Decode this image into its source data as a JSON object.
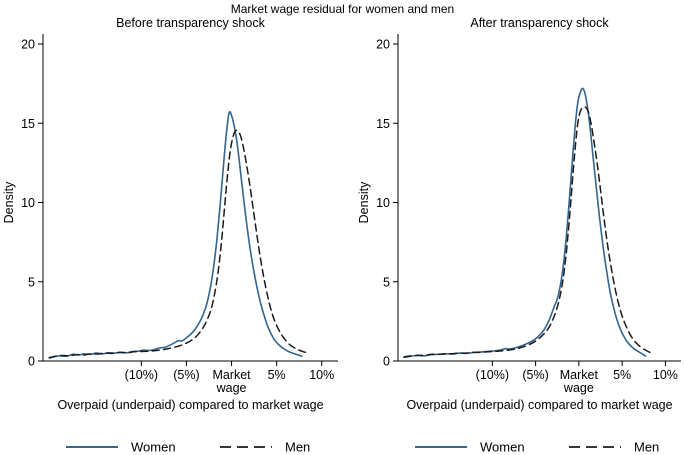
{
  "chart_data": {
    "type": "line",
    "title": "Market wage residual for women and men",
    "xlabel": "Overpaid (underpaid) compared to market wage",
    "ylabel": "Density",
    "ylim": [
      0,
      20
    ],
    "xlim": [
      -20.9,
      11.8
    ],
    "yticks": [
      0,
      5,
      10,
      15,
      20
    ],
    "xticks": [
      {
        "value": -10,
        "label": "(10%)"
      },
      {
        "value": -5,
        "label": "(5%)"
      },
      {
        "value": 0,
        "label": "Market",
        "label2": "wage"
      },
      {
        "value": 5,
        "label": "5%"
      },
      {
        "value": 10,
        "label": "10%"
      }
    ],
    "legend": {
      "women": "Women",
      "men": "Men"
    },
    "colors": {
      "women": "#33658f",
      "men": "#1a1a1a",
      "axis": "#000000"
    },
    "grid": false,
    "legend_position": "bottom-center",
    "panels": [
      {
        "title": "Before transparency shock",
        "series": [
          {
            "name": "Women",
            "style": "solid",
            "points": [
              [
                -20.2,
                0.18
              ],
              [
                -19.6,
                0.28
              ],
              [
                -19,
                0.33
              ],
              [
                -18.3,
                0.3
              ],
              [
                -17.6,
                0.42
              ],
              [
                -17,
                0.38
              ],
              [
                -16.3,
                0.45
              ],
              [
                -15.6,
                0.42
              ],
              [
                -15,
                0.5
              ],
              [
                -14.3,
                0.45
              ],
              [
                -13.6,
                0.52
              ],
              [
                -13,
                0.5
              ],
              [
                -12.3,
                0.55
              ],
              [
                -11.6,
                0.52
              ],
              [
                -11,
                0.6
              ],
              [
                -10.4,
                0.62
              ],
              [
                -9.8,
                0.68
              ],
              [
                -9.2,
                0.66
              ],
              [
                -8.6,
                0.72
              ],
              [
                -8,
                0.82
              ],
              [
                -7.4,
                0.86
              ],
              [
                -6.9,
                0.98
              ],
              [
                -6.4,
                1.12
              ],
              [
                -5.9,
                1.28
              ],
              [
                -5.5,
                1.26
              ],
              [
                -5.1,
                1.42
              ],
              [
                -4.7,
                1.6
              ],
              [
                -4.3,
                1.82
              ],
              [
                -3.9,
                2.12
              ],
              [
                -3.5,
                2.5
              ],
              [
                -3.1,
                3.0
              ],
              [
                -2.8,
                3.5
              ],
              [
                -2.5,
                4.2
              ],
              [
                -2.2,
                5.1
              ],
              [
                -1.9,
                6.3
              ],
              [
                -1.6,
                7.8
              ],
              [
                -1.3,
                9.6
              ],
              [
                -1.0,
                11.6
              ],
              [
                -0.7,
                13.6
              ],
              [
                -0.45,
                15.0
              ],
              [
                -0.25,
                15.7
              ],
              [
                0,
                15.5
              ],
              [
                0.3,
                14.8
              ],
              [
                0.6,
                13.8
              ],
              [
                0.9,
                12.4
              ],
              [
                1.2,
                10.9
              ],
              [
                1.6,
                9.0
              ],
              [
                2.0,
                7.3
              ],
              [
                2.4,
                5.9
              ],
              [
                2.8,
                4.7
              ],
              [
                3.2,
                3.7
              ],
              [
                3.6,
                2.9
              ],
              [
                4.0,
                2.2
              ],
              [
                4.4,
                1.7
              ],
              [
                4.8,
                1.3
              ],
              [
                5.2,
                1.05
              ],
              [
                5.6,
                0.85
              ],
              [
                6.0,
                0.7
              ],
              [
                6.5,
                0.55
              ],
              [
                7.0,
                0.45
              ],
              [
                7.4,
                0.38
              ],
              [
                7.8,
                0.3
              ]
            ]
          },
          {
            "name": "Men",
            "style": "dashed",
            "points": [
              [
                -20.2,
                0.22
              ],
              [
                -19.5,
                0.3
              ],
              [
                -18.8,
                0.35
              ],
              [
                -18,
                0.33
              ],
              [
                -17.2,
                0.4
              ],
              [
                -16.4,
                0.38
              ],
              [
                -15.6,
                0.45
              ],
              [
                -14.8,
                0.44
              ],
              [
                -14,
                0.5
              ],
              [
                -13.2,
                0.48
              ],
              [
                -12.4,
                0.54
              ],
              [
                -11.6,
                0.52
              ],
              [
                -10.8,
                0.58
              ],
              [
                -10,
                0.6
              ],
              [
                -9.2,
                0.62
              ],
              [
                -8.4,
                0.66
              ],
              [
                -7.6,
                0.72
              ],
              [
                -7,
                0.78
              ],
              [
                -6.4,
                0.86
              ],
              [
                -5.8,
                0.95
              ],
              [
                -5.2,
                1.08
              ],
              [
                -4.6,
                1.25
              ],
              [
                -4.1,
                1.45
              ],
              [
                -3.6,
                1.75
              ],
              [
                -3.1,
                2.15
              ],
              [
                -2.7,
                2.6
              ],
              [
                -2.3,
                3.2
              ],
              [
                -2.0,
                3.9
              ],
              [
                -1.7,
                4.8
              ],
              [
                -1.4,
                6.0
              ],
              [
                -1.1,
                7.6
              ],
              [
                -0.8,
                9.5
              ],
              [
                -0.5,
                11.4
              ],
              [
                -0.2,
                13.0
              ],
              [
                0.1,
                14.0
              ],
              [
                0.4,
                14.5
              ],
              [
                0.7,
                14.5
              ],
              [
                1.0,
                14.2
              ],
              [
                1.3,
                13.5
              ],
              [
                1.6,
                12.6
              ],
              [
                2.0,
                11.2
              ],
              [
                2.4,
                9.6
              ],
              [
                2.8,
                8.0
              ],
              [
                3.2,
                6.5
              ],
              [
                3.6,
                5.2
              ],
              [
                4.0,
                4.1
              ],
              [
                4.4,
                3.2
              ],
              [
                4.8,
                2.5
              ],
              [
                5.2,
                2.0
              ],
              [
                5.6,
                1.6
              ],
              [
                6.0,
                1.3
              ],
              [
                6.5,
                1.0
              ],
              [
                7.0,
                0.82
              ],
              [
                7.5,
                0.68
              ],
              [
                8.0,
                0.58
              ],
              [
                8.4,
                0.52
              ]
            ]
          }
        ]
      },
      {
        "title": "After transparency shock",
        "series": [
          {
            "name": "Women",
            "style": "solid",
            "points": [
              [
                -20.2,
                0.22
              ],
              [
                -19.4,
                0.3
              ],
              [
                -18.6,
                0.35
              ],
              [
                -17.8,
                0.33
              ],
              [
                -17,
                0.4
              ],
              [
                -16.2,
                0.42
              ],
              [
                -15.4,
                0.45
              ],
              [
                -14.6,
                0.44
              ],
              [
                -13.8,
                0.5
              ],
              [
                -13,
                0.48
              ],
              [
                -12.2,
                0.54
              ],
              [
                -11.4,
                0.56
              ],
              [
                -10.6,
                0.6
              ],
              [
                -9.8,
                0.64
              ],
              [
                -9.0,
                0.7
              ],
              [
                -8.5,
                0.78
              ],
              [
                -8.0,
                0.76
              ],
              [
                -7.4,
                0.82
              ],
              [
                -6.8,
                0.92
              ],
              [
                -6.2,
                1.05
              ],
              [
                -5.6,
                1.2
              ],
              [
                -5.0,
                1.4
              ],
              [
                -4.5,
                1.65
              ],
              [
                -4.0,
                2.0
              ],
              [
                -3.5,
                2.5
              ],
              [
                -3.1,
                3.05
              ],
              [
                -2.8,
                3.5
              ],
              [
                -2.5,
                3.9
              ],
              [
                -2.2,
                4.6
              ],
              [
                -1.9,
                5.6
              ],
              [
                -1.6,
                7.0
              ],
              [
                -1.3,
                8.8
              ],
              [
                -1.0,
                10.9
              ],
              [
                -0.7,
                13.0
              ],
              [
                -0.4,
                15.0
              ],
              [
                -0.1,
                16.4
              ],
              [
                0.2,
                17.0
              ],
              [
                0.45,
                17.2
              ],
              [
                0.7,
                16.9
              ],
              [
                1.0,
                16.0
              ],
              [
                1.3,
                14.7
              ],
              [
                1.6,
                13.1
              ],
              [
                2.0,
                11.0
              ],
              [
                2.4,
                9.0
              ],
              [
                2.8,
                7.2
              ],
              [
                3.2,
                5.7
              ],
              [
                3.6,
                4.4
              ],
              [
                4.0,
                3.4
              ],
              [
                4.4,
                2.6
              ],
              [
                4.8,
                2.0
              ],
              [
                5.2,
                1.55
              ],
              [
                5.6,
                1.2
              ],
              [
                6.0,
                0.95
              ],
              [
                6.5,
                0.72
              ],
              [
                7.0,
                0.55
              ],
              [
                7.4,
                0.42
              ],
              [
                7.7,
                0.32
              ]
            ]
          },
          {
            "name": "Men",
            "style": "dashed",
            "points": [
              [
                -20.2,
                0.26
              ],
              [
                -19.4,
                0.32
              ],
              [
                -18.6,
                0.36
              ],
              [
                -17.8,
                0.36
              ],
              [
                -17,
                0.42
              ],
              [
                -16.2,
                0.42
              ],
              [
                -15.4,
                0.46
              ],
              [
                -14.6,
                0.46
              ],
              [
                -13.8,
                0.5
              ],
              [
                -13,
                0.5
              ],
              [
                -12.2,
                0.54
              ],
              [
                -11.4,
                0.54
              ],
              [
                -10.6,
                0.58
              ],
              [
                -9.8,
                0.6
              ],
              [
                -9.0,
                0.64
              ],
              [
                -8.2,
                0.68
              ],
              [
                -7.5,
                0.74
              ],
              [
                -6.9,
                0.82
              ],
              [
                -6.3,
                0.92
              ],
              [
                -5.7,
                1.05
              ],
              [
                -5.1,
                1.22
              ],
              [
                -4.6,
                1.42
              ],
              [
                -4.1,
                1.68
              ],
              [
                -3.6,
                2.0
              ],
              [
                -3.1,
                2.5
              ],
              [
                -2.7,
                3.05
              ],
              [
                -2.3,
                3.8
              ],
              [
                -1.9,
                4.9
              ],
              [
                -1.6,
                6.1
              ],
              [
                -1.3,
                7.7
              ],
              [
                -1.0,
                9.6
              ],
              [
                -0.7,
                11.7
              ],
              [
                -0.4,
                13.6
              ],
              [
                -0.1,
                15.1
              ],
              [
                0.2,
                15.8
              ],
              [
                0.5,
                16.0
              ],
              [
                0.8,
                16.0
              ],
              [
                1.1,
                15.7
              ],
              [
                1.4,
                15.0
              ],
              [
                1.7,
                14.0
              ],
              [
                2.1,
                12.5
              ],
              [
                2.5,
                10.8
              ],
              [
                2.9,
                9.0
              ],
              [
                3.3,
                7.4
              ],
              [
                3.7,
                6.0
              ],
              [
                4.1,
                4.8
              ],
              [
                4.5,
                3.8
              ],
              [
                4.9,
                3.0
              ],
              [
                5.3,
                2.4
              ],
              [
                5.7,
                1.9
              ],
              [
                6.1,
                1.5
              ],
              [
                6.6,
                1.15
              ],
              [
                7.1,
                0.9
              ],
              [
                7.6,
                0.72
              ],
              [
                8.0,
                0.6
              ],
              [
                8.4,
                0.5
              ]
            ]
          }
        ]
      }
    ]
  }
}
